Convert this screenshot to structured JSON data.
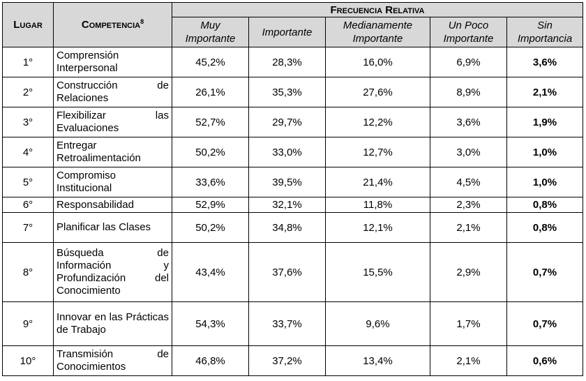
{
  "headers": {
    "lugar": "Lugar",
    "competencia": "Competencia",
    "competencia_sup": "8",
    "frecuencia": "Frecuencia Relativa",
    "cols": [
      "Muy Importante",
      "Importante",
      "Medianamente Importante",
      "Un Poco Importante",
      "Sin Importancia"
    ]
  },
  "rows": [
    {
      "lugar": "1°",
      "competencia": "Comprensión Interpersonal",
      "vals": [
        "45,2%",
        "28,3%",
        "16,0%",
        "6,9%",
        "3,6%"
      ]
    },
    {
      "lugar": "2°",
      "competencia": "Construcción de Relaciones",
      "vals": [
        "26,1%",
        "35,3%",
        "27,6%",
        "8,9%",
        "2,1%"
      ]
    },
    {
      "lugar": "3°",
      "competencia": "Flexibilizar las Evaluaciones",
      "vals": [
        "52,7%",
        "29,7%",
        "12,2%",
        "3,6%",
        "1,9%"
      ]
    },
    {
      "lugar": "4°",
      "competencia": "Entregar Retroalimentación",
      "vals": [
        "50,2%",
        "33,0%",
        "12,7%",
        "3,0%",
        "1,0%"
      ]
    },
    {
      "lugar": "5°",
      "competencia": "Compromiso Institucional",
      "vals": [
        "33,6%",
        "39,5%",
        "21,4%",
        "4,5%",
        "1,0%"
      ]
    },
    {
      "lugar": "6°",
      "competencia": "Responsabilidad",
      "vals": [
        "52,9%",
        "32,1%",
        "11,8%",
        "2,3%",
        "0,8%"
      ]
    },
    {
      "lugar": "7°",
      "competencia": "Planificar las Clases",
      "vals": [
        "50,2%",
        "34,8%",
        "12,1%",
        "2,1%",
        "0,8%"
      ]
    },
    {
      "lugar": "8°",
      "competencia": "Búsqueda de Información y Profundización del Conocimiento",
      "vals": [
        "43,4%",
        "37,6%",
        "15,5%",
        "2,9%",
        "0,7%"
      ]
    },
    {
      "lugar": "9°",
      "competencia": "Innovar en las Prácticas de Trabajo",
      "vals": [
        "54,3%",
        "33,7%",
        "9,6%",
        "1,7%",
        "0,7%"
      ]
    },
    {
      "lugar": "10°",
      "competencia": "Transmisión de Conocimientos",
      "vals": [
        "46,8%",
        "37,2%",
        "13,4%",
        "2,1%",
        "0,6%"
      ]
    }
  ]
}
